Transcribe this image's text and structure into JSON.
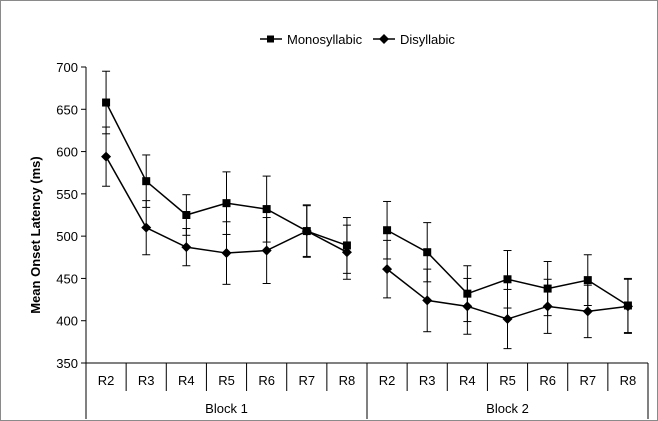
{
  "chart_data": {
    "type": "line",
    "ylabel": "Mean Onset Latency (ms)",
    "xlabel": "",
    "ylim": [
      350,
      700
    ],
    "yticks": [
      350,
      400,
      450,
      500,
      550,
      600,
      650,
      700
    ],
    "grid": false,
    "legend_position": "top-center",
    "categories": [
      "R2",
      "R3",
      "R4",
      "R5",
      "R6",
      "R7",
      "R8",
      "R2",
      "R3",
      "R4",
      "R5",
      "R6",
      "R7",
      "R8"
    ],
    "groups": [
      {
        "label": "Block 1",
        "span": 7
      },
      {
        "label": "Block 2",
        "span": 7
      }
    ],
    "series": [
      {
        "name": "Monosyllabic",
        "marker": "square",
        "color": "#000000",
        "segments": [
          {
            "x": [
              "R2",
              "R3",
              "R4",
              "R5",
              "R6",
              "R7",
              "R8"
            ],
            "values": [
              658,
              565,
              525,
              539,
              532,
              506,
              489
            ],
            "errors": [
              37,
              31,
              24,
              37,
              39,
              31,
              33
            ]
          },
          {
            "x": [
              "R2",
              "R3",
              "R4",
              "R5",
              "R6",
              "R7",
              "R8"
            ],
            "values": [
              507,
              481,
              432,
              449,
              438,
              448,
              418
            ],
            "errors": [
              34,
              35,
              33,
              34,
              32,
              30,
              32
            ]
          }
        ]
      },
      {
        "name": "Disyllabic",
        "marker": "diamond",
        "color": "#000000",
        "segments": [
          {
            "x": [
              "R2",
              "R3",
              "R4",
              "R5",
              "R6",
              "R7",
              "R8"
            ],
            "values": [
              594,
              510,
              487,
              480,
              483,
              506,
              481
            ],
            "errors": [
              35,
              32,
              22,
              37,
              39,
              30,
              32
            ]
          },
          {
            "x": [
              "R2",
              "R3",
              "R4",
              "R5",
              "R6",
              "R7",
              "R8"
            ],
            "values": [
              461,
              424,
              417,
              402,
              417,
              411,
              417
            ],
            "errors": [
              34,
              37,
              33,
              35,
              32,
              31,
              32
            ]
          }
        ]
      }
    ]
  }
}
